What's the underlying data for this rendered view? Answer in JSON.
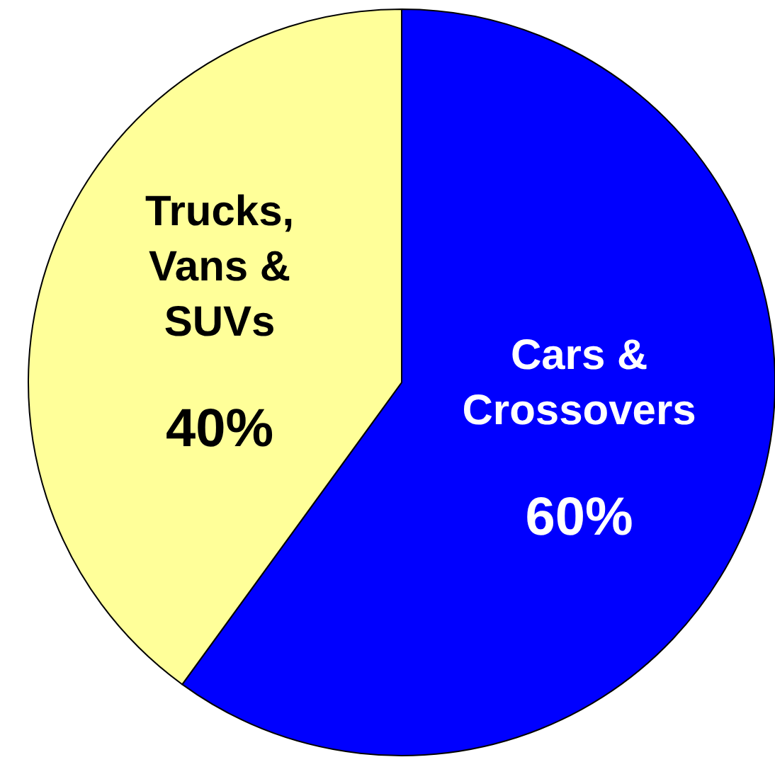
{
  "chart_data": {
    "type": "pie",
    "categories": [
      "Cars & Crossovers",
      "Trucks, Vans & SUVs"
    ],
    "values": [
      60,
      40
    ],
    "colors": [
      "#0000ff",
      "#ffff99"
    ],
    "value_labels": [
      "60%",
      "40%"
    ],
    "legend": false
  }
}
